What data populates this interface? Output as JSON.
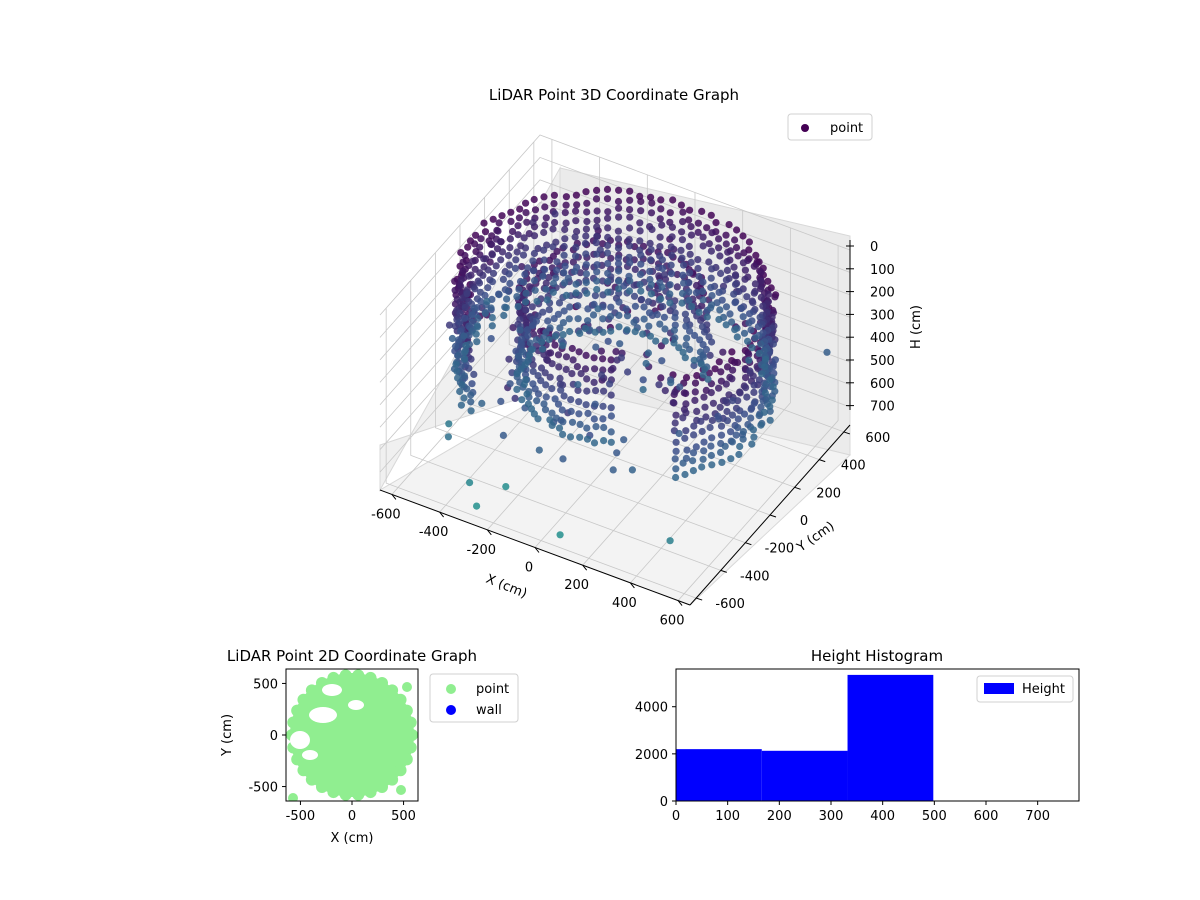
{
  "chart_data": [
    {
      "type": "scatter3d",
      "title": "LiDAR Point 3D Coordinate Graph",
      "xlabel": "X (cm)",
      "ylabel": "Y (cm)",
      "zlabel": "H (cm)",
      "xticks": [
        -600,
        -400,
        -200,
        0,
        200,
        400,
        600
      ],
      "yticks": [
        -600,
        -400,
        -200,
        0,
        200,
        400,
        600
      ],
      "zticks": [
        0,
        100,
        200,
        300,
        400,
        500,
        600,
        700
      ],
      "xlim": [
        -650,
        650
      ],
      "ylim": [
        -650,
        650
      ],
      "zlim": [
        0,
        780
      ],
      "z_inverted": true,
      "legend": {
        "position": "top-right",
        "entries": [
          {
            "label": "point",
            "color": "#440154"
          }
        ]
      },
      "series": [
        {
          "name": "point",
          "description_shape": "outer circular wall r≈550-620 with inner arc wall r≈350, heights 0-500",
          "colormap": "viridis"
        }
      ],
      "outliers": [
        [
          -620,
          -120,
          420
        ],
        [
          -610,
          40,
          380
        ],
        [
          -560,
          -260,
          250
        ],
        [
          -540,
          380,
          180
        ],
        [
          -520,
          520,
          220
        ],
        [
          -480,
          -420,
          560
        ],
        [
          -300,
          -600,
          640
        ],
        [
          -250,
          -640,
          700
        ],
        [
          -200,
          -500,
          680
        ],
        [
          100,
          -640,
          690
        ],
        [
          520,
          -560,
          600
        ],
        [
          600,
          560,
          420
        ],
        [
          -640,
          200,
          460
        ],
        [
          -420,
          -540,
          520
        ]
      ]
    },
    {
      "type": "scatter",
      "title": "LiDAR Point 2D Coordinate Graph",
      "xlabel": "X (cm)",
      "ylabel": "Y (cm)",
      "xticks": [
        -500,
        0,
        500
      ],
      "yticks": [
        -500,
        0,
        500
      ],
      "xlim": [
        -640,
        640
      ],
      "ylim": [
        -640,
        640
      ],
      "legend": {
        "position": "outside-right",
        "entries": [
          {
            "label": "point",
            "color": "#90ee90"
          },
          {
            "label": "wall",
            "color": "#0000ff"
          }
        ]
      },
      "series": [
        {
          "name": "point",
          "color": "#90ee90",
          "description_shape": "filled disc r≈600 with hollow gaps near top-left"
        },
        {
          "name": "wall",
          "color": "#0000ff",
          "values": []
        }
      ]
    },
    {
      "type": "bar",
      "title": "Height Histogram",
      "xticks": [
        0,
        100,
        200,
        300,
        400,
        500,
        600,
        700
      ],
      "yticks": [
        0,
        2000,
        4000
      ],
      "xlim": [
        0,
        780
      ],
      "ylim": [
        0,
        5600
      ],
      "legend": {
        "position": "top-right",
        "entries": [
          {
            "label": "Height",
            "color": "#0000ff"
          }
        ]
      },
      "bins": [
        {
          "start": 0,
          "end": 166,
          "count": 2200
        },
        {
          "start": 166,
          "end": 332,
          "count": 2130
        },
        {
          "start": 332,
          "end": 498,
          "count": 5350
        }
      ],
      "color": "#0000ff"
    }
  ]
}
